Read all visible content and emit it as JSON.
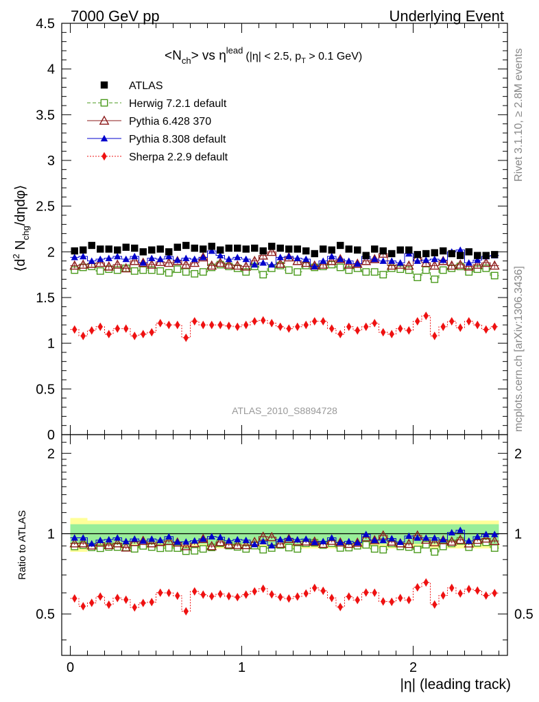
{
  "header": {
    "left": "7000 GeV pp",
    "right": "Underlying Event"
  },
  "side_labels": {
    "rivet": "Rivet 3.1.10, ≥ 2.8M events",
    "mcplots": "mcplots.cern.ch [arXiv:1306.3436]"
  },
  "chart_data": {
    "type": "scatter",
    "title": "<N_ch> vs η^lead (|η| < 2.5, p_T > 0.1 GeV)",
    "title_parts": {
      "n_open": "<N",
      "n_sub": "ch",
      "vs": "> vs η",
      "lead_sup": "lead",
      "cut_open": "(|η| < 2.5, p",
      "pt_sub": "T",
      "cut_close": " > 0.1 GeV)"
    },
    "analysis_id": "ATLAS_2010_S8894728",
    "xlabel": "|η| (leading track)",
    "ylabel": "⟨d² N_chg/dηdφ⟩",
    "ylabel_parts": {
      "open": "⟨d",
      "sup": "2",
      "n": " N",
      "sub": "chg",
      "close": "/dηdφ⟩"
    },
    "ratio_ylabel": "Ratio to ATLAS",
    "xlim": [
      -0.05,
      2.55
    ],
    "ylim": [
      0,
      4.5
    ],
    "ratio_ylim": [
      0.35,
      2.35
    ],
    "x_ticks": [
      0,
      1,
      2
    ],
    "y_ticks": [
      0,
      0.5,
      1,
      1.5,
      2,
      2.5,
      3,
      3.5,
      4,
      4.5
    ],
    "y_tick_labels": [
      "0",
      "0.5",
      "1",
      "1.5",
      "2",
      "2.5",
      "3",
      "3.5",
      "4",
      "4.5"
    ],
    "ratio_y_ticks": [
      0.5,
      1,
      2
    ],
    "ratio_y_tick_labels": [
      "0.5",
      "1",
      "2"
    ],
    "x": [
      0.025,
      0.075,
      0.125,
      0.175,
      0.225,
      0.275,
      0.325,
      0.375,
      0.425,
      0.475,
      0.525,
      0.575,
      0.625,
      0.675,
      0.725,
      0.775,
      0.825,
      0.875,
      0.925,
      0.975,
      1.025,
      1.075,
      1.125,
      1.175,
      1.225,
      1.275,
      1.325,
      1.375,
      1.425,
      1.475,
      1.525,
      1.575,
      1.625,
      1.675,
      1.725,
      1.775,
      1.825,
      1.875,
      1.925,
      1.975,
      2.025,
      2.075,
      2.125,
      2.175,
      2.225,
      2.275,
      2.325,
      2.375,
      2.425,
      2.475
    ],
    "series": [
      {
        "name": "ATLAS",
        "color": "#000000",
        "marker": "square-filled",
        "values": [
          2.01,
          2.02,
          2.07,
          2.03,
          2.03,
          2.02,
          2.05,
          2.04,
          2.0,
          2.02,
          2.03,
          2.0,
          2.05,
          2.07,
          2.04,
          2.03,
          2.06,
          2.02,
          2.04,
          2.04,
          2.03,
          2.04,
          2.01,
          2.06,
          2.04,
          2.03,
          2.03,
          2.01,
          1.98,
          2.03,
          2.02,
          2.07,
          2.03,
          2.02,
          1.96,
          2.03,
          2.01,
          1.98,
          2.02,
          2.02,
          1.97,
          1.98,
          1.99,
          2.01,
          1.98,
          1.96,
          2.0,
          1.96,
          1.96,
          1.97
        ]
      },
      {
        "name": "Herwig 7.2.1 default",
        "color": "#4a9a1c",
        "marker": "square-open",
        "line": "dashed",
        "values": [
          1.8,
          1.83,
          1.84,
          1.79,
          1.81,
          1.8,
          1.82,
          1.79,
          1.8,
          1.8,
          1.79,
          1.77,
          1.81,
          1.78,
          1.76,
          1.78,
          1.83,
          1.86,
          1.84,
          1.82,
          1.78,
          1.84,
          1.75,
          1.82,
          1.85,
          1.8,
          1.78,
          1.85,
          1.83,
          1.84,
          1.86,
          1.83,
          1.8,
          1.82,
          1.78,
          1.78,
          1.75,
          1.82,
          1.81,
          1.8,
          1.72,
          1.8,
          1.7,
          1.8,
          1.82,
          1.84,
          1.78,
          1.81,
          1.82,
          1.74
        ]
      },
      {
        "name": "Pythia 6.428 370",
        "color": "#8b1a1a",
        "marker": "triangle-open",
        "line": "solid",
        "values": [
          1.85,
          1.86,
          1.87,
          1.88,
          1.84,
          1.86,
          1.82,
          1.9,
          1.88,
          1.86,
          1.89,
          1.88,
          1.9,
          1.86,
          1.88,
          1.94,
          1.85,
          1.88,
          1.86,
          1.85,
          1.84,
          1.9,
          1.96,
          2.0,
          1.87,
          1.94,
          1.9,
          1.88,
          1.85,
          1.86,
          1.9,
          1.92,
          1.86,
          1.87,
          1.9,
          1.92,
          1.98,
          1.85,
          1.86,
          1.85,
          1.94,
          1.88,
          1.85,
          1.9,
          1.85,
          1.86,
          1.84,
          1.86,
          1.88,
          1.85
        ]
      },
      {
        "name": "Pythia 8.308 default",
        "color": "#0000cc",
        "marker": "triangle-filled",
        "line": "solid",
        "values": [
          1.94,
          1.95,
          1.9,
          1.92,
          1.93,
          1.95,
          1.92,
          1.95,
          1.88,
          1.93,
          1.92,
          1.95,
          1.91,
          1.93,
          1.92,
          1.94,
          2.01,
          1.96,
          1.92,
          1.94,
          1.92,
          1.86,
          1.88,
          1.86,
          1.94,
          1.95,
          1.93,
          1.92,
          1.84,
          1.9,
          1.95,
          1.92,
          1.9,
          1.87,
          1.95,
          1.92,
          1.9,
          1.9,
          1.88,
          1.98,
          1.9,
          1.91,
          1.92,
          1.91,
          2.0,
          2.02,
          1.88,
          1.91,
          1.95,
          1.96
        ]
      },
      {
        "name": "Sherpa 2.2.9 default",
        "color": "#ee1111",
        "marker": "diamond-filled",
        "line": "dotted",
        "values": [
          1.15,
          1.08,
          1.14,
          1.18,
          1.1,
          1.16,
          1.16,
          1.08,
          1.1,
          1.12,
          1.22,
          1.2,
          1.2,
          1.06,
          1.24,
          1.2,
          1.2,
          1.2,
          1.19,
          1.18,
          1.2,
          1.24,
          1.25,
          1.22,
          1.18,
          1.16,
          1.18,
          1.2,
          1.24,
          1.24,
          1.16,
          1.1,
          1.18,
          1.14,
          1.18,
          1.22,
          1.12,
          1.1,
          1.16,
          1.14,
          1.24,
          1.3,
          1.08,
          1.18,
          1.24,
          1.17,
          1.24,
          1.2,
          1.15,
          1.18
        ]
      }
    ]
  }
}
